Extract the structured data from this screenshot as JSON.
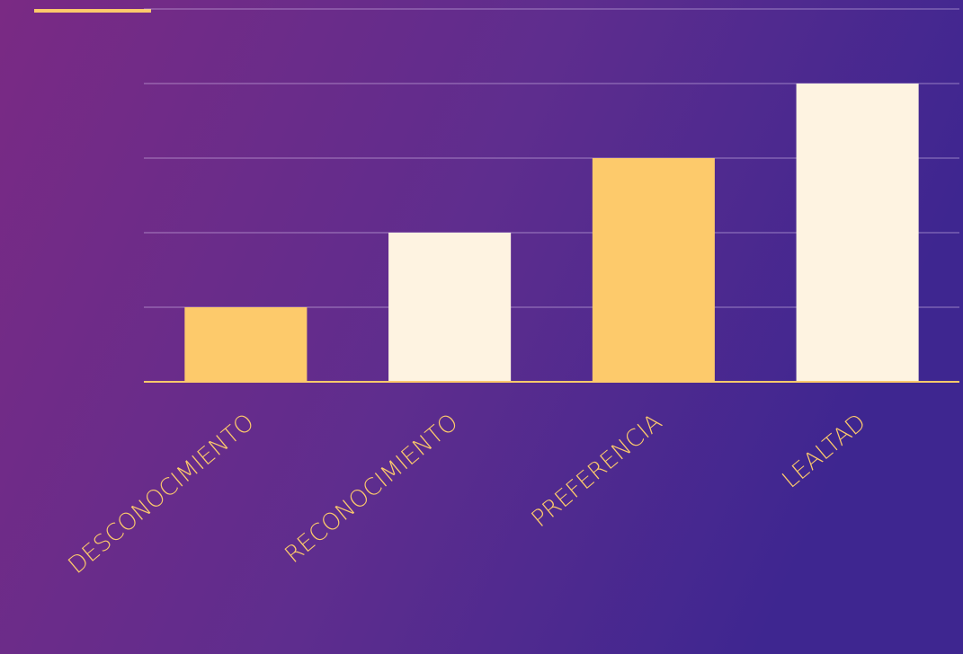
{
  "chart_data": {
    "type": "bar",
    "categories": [
      "DESCONOCIMIENTO",
      "RECONOCIMIENTO",
      "PREFERENCIA",
      "LEALTAD"
    ],
    "values": [
      1,
      2,
      3,
      4
    ],
    "colors": [
      "#fdca6b",
      "#fef3e1",
      "#fdca6b",
      "#fef3e1"
    ],
    "ylim": [
      0,
      5
    ],
    "yticks": [
      0,
      1,
      2,
      3,
      4,
      5
    ],
    "grid": true
  }
}
